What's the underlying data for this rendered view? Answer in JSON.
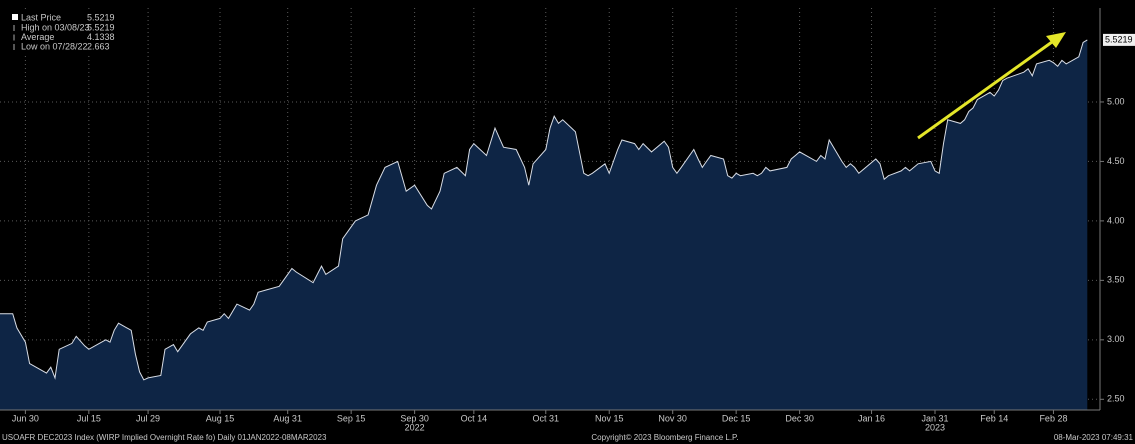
{
  "chart_data": {
    "type": "area",
    "x": [
      "2022-06-24",
      "2022-06-27",
      "2022-06-28",
      "2022-06-30",
      "2022-07-01",
      "2022-07-05",
      "2022-07-06",
      "2022-07-07",
      "2022-07-08",
      "2022-07-11",
      "2022-07-12",
      "2022-07-14",
      "2022-07-15",
      "2022-07-18",
      "2022-07-19",
      "2022-07-20",
      "2022-07-21",
      "2022-07-22",
      "2022-07-25",
      "2022-07-26",
      "2022-07-27",
      "2022-07-28",
      "2022-07-29",
      "2022-08-01",
      "2022-08-02",
      "2022-08-04",
      "2022-08-05",
      "2022-08-08",
      "2022-08-10",
      "2022-08-11",
      "2022-08-12",
      "2022-08-15",
      "2022-08-16",
      "2022-08-17",
      "2022-08-19",
      "2022-08-22",
      "2022-08-23",
      "2022-08-24",
      "2022-08-26",
      "2022-08-29",
      "2022-08-31",
      "2022-09-01",
      "2022-09-02",
      "2022-09-06",
      "2022-09-07",
      "2022-09-08",
      "2022-09-09",
      "2022-09-12",
      "2022-09-13",
      "2022-09-14",
      "2022-09-16",
      "2022-09-19",
      "2022-09-21",
      "2022-09-23",
      "2022-09-26",
      "2022-09-28",
      "2022-09-30",
      "2022-10-03",
      "2022-10-04",
      "2022-10-06",
      "2022-10-07",
      "2022-10-10",
      "2022-10-12",
      "2022-10-13",
      "2022-10-14",
      "2022-10-17",
      "2022-10-19",
      "2022-10-20",
      "2022-10-21",
      "2022-10-24",
      "2022-10-26",
      "2022-10-27",
      "2022-10-28",
      "2022-10-31",
      "2022-11-01",
      "2022-11-02",
      "2022-11-03",
      "2022-11-04",
      "2022-11-07",
      "2022-11-09",
      "2022-11-10",
      "2022-11-11",
      "2022-11-14",
      "2022-11-15",
      "2022-11-17",
      "2022-11-18",
      "2022-11-21",
      "2022-11-22",
      "2022-11-23",
      "2022-11-25",
      "2022-11-28",
      "2022-11-29",
      "2022-11-30",
      "2022-12-01",
      "2022-12-02",
      "2022-12-05",
      "2022-12-06",
      "2022-12-07",
      "2022-12-08",
      "2022-12-09",
      "2022-12-12",
      "2022-12-13",
      "2022-12-14",
      "2022-12-15",
      "2022-12-16",
      "2022-12-19",
      "2022-12-20",
      "2022-12-21",
      "2022-12-22",
      "2022-12-23",
      "2022-12-27",
      "2022-12-28",
      "2022-12-29",
      "2022-12-30",
      "2023-01-03",
      "2023-01-04",
      "2023-01-05",
      "2023-01-06",
      "2023-01-09",
      "2023-01-10",
      "2023-01-11",
      "2023-01-12",
      "2023-01-13",
      "2023-01-17",
      "2023-01-18",
      "2023-01-19",
      "2023-01-20",
      "2023-01-23",
      "2023-01-24",
      "2023-01-25",
      "2023-01-26",
      "2023-01-27",
      "2023-01-30",
      "2023-01-31",
      "2023-02-01",
      "2023-02-02",
      "2023-02-03",
      "2023-02-06",
      "2023-02-07",
      "2023-02-08",
      "2023-02-09",
      "2023-02-10",
      "2023-02-13",
      "2023-02-14",
      "2023-02-15",
      "2023-02-16",
      "2023-02-17",
      "2023-02-21",
      "2023-02-22",
      "2023-02-23",
      "2023-02-24",
      "2023-02-27",
      "2023-02-28",
      "2023-03-01",
      "2023-03-02",
      "2023-03-03",
      "2023-03-06",
      "2023-03-07",
      "2023-03-08"
    ],
    "series": [
      {
        "name": "Last Price",
        "color": "#d8dde6",
        "fill": "#0e2545",
        "values": [
          3.22,
          3.22,
          3.1,
          2.98,
          2.8,
          2.72,
          2.77,
          2.68,
          2.92,
          2.97,
          3.03,
          2.95,
          2.92,
          2.98,
          3.0,
          2.98,
          3.08,
          3.14,
          3.08,
          2.88,
          2.73,
          2.663,
          2.68,
          2.7,
          2.92,
          2.96,
          2.9,
          3.05,
          3.1,
          3.08,
          3.15,
          3.18,
          3.22,
          3.18,
          3.3,
          3.25,
          3.3,
          3.4,
          3.42,
          3.45,
          3.55,
          3.6,
          3.57,
          3.48,
          3.55,
          3.62,
          3.55,
          3.62,
          3.85,
          3.9,
          4.0,
          4.05,
          4.3,
          4.45,
          4.5,
          4.25,
          4.3,
          4.13,
          4.1,
          4.25,
          4.4,
          4.45,
          4.38,
          4.6,
          4.65,
          4.55,
          4.78,
          4.7,
          4.62,
          4.6,
          4.45,
          4.3,
          4.48,
          4.6,
          4.78,
          4.88,
          4.82,
          4.85,
          4.75,
          4.4,
          4.38,
          4.4,
          4.48,
          4.4,
          4.6,
          4.68,
          4.65,
          4.6,
          4.65,
          4.58,
          4.67,
          4.62,
          4.45,
          4.4,
          4.45,
          4.6,
          4.52,
          4.45,
          4.5,
          4.55,
          4.52,
          4.38,
          4.36,
          4.4,
          4.38,
          4.4,
          4.38,
          4.4,
          4.45,
          4.42,
          4.45,
          4.52,
          4.55,
          4.58,
          4.5,
          4.55,
          4.52,
          4.68,
          4.5,
          4.45,
          4.48,
          4.45,
          4.4,
          4.52,
          4.48,
          4.35,
          4.38,
          4.42,
          4.45,
          4.42,
          4.45,
          4.48,
          4.5,
          4.42,
          4.4,
          4.65,
          4.85,
          4.82,
          4.85,
          4.92,
          4.95,
          5.02,
          5.08,
          5.05,
          5.1,
          5.18,
          5.2,
          5.25,
          5.28,
          5.22,
          5.32,
          5.35,
          5.33,
          5.3,
          5.35,
          5.32,
          5.38,
          5.5,
          5.5219
        ]
      }
    ],
    "stats": [
      {
        "label": "High on 03/08/23",
        "value": 5.5219
      },
      {
        "label": "Average",
        "value": 4.1338
      },
      {
        "label": "Low on 07/28/22",
        "value": 2.663
      }
    ],
    "xlim": [
      "2022-06-24",
      "2023-03-11"
    ],
    "xticks": [
      {
        "value": "2022-06-30",
        "label": "Jun 30"
      },
      {
        "value": "2022-07-15",
        "label": "Jul 15"
      },
      {
        "value": "2022-07-29",
        "label": "Jul 29"
      },
      {
        "value": "2022-08-15",
        "label": "Aug 15"
      },
      {
        "value": "2022-08-31",
        "label": "Aug 31"
      },
      {
        "value": "2022-09-15",
        "label": "Sep 15"
      },
      {
        "value": "2022-09-30",
        "label": "Sep 30"
      },
      {
        "value": "2022-10-14",
        "label": "Oct 14"
      },
      {
        "value": "2022-10-31",
        "label": "Oct 31"
      },
      {
        "value": "2022-11-15",
        "label": "Nov 15"
      },
      {
        "value": "2022-11-30",
        "label": "Nov 30"
      },
      {
        "value": "2022-12-15",
        "label": "Dec 15"
      },
      {
        "value": "2022-12-30",
        "label": "Dec 30"
      },
      {
        "value": "2023-01-16",
        "label": "Jan 16"
      },
      {
        "value": "2023-01-31",
        "label": "Jan 31"
      },
      {
        "value": "2023-02-14",
        "label": "Feb 14"
      },
      {
        "value": "2023-02-28",
        "label": "Feb 28"
      }
    ],
    "year_labels": [
      {
        "value": "2022-09-30",
        "label": "2022"
      },
      {
        "value": "2023-01-31",
        "label": "2023"
      }
    ],
    "ylim": [
      2.41,
      5.79
    ],
    "yticks": [
      {
        "value": 2.5,
        "label": "2.50"
      },
      {
        "value": 3,
        "label": "3.00"
      },
      {
        "value": 3.5,
        "label": "3.50"
      },
      {
        "value": 4,
        "label": "4.00"
      },
      {
        "value": 4.5,
        "label": "4.50"
      },
      {
        "value": 5,
        "label": "5.00"
      }
    ],
    "grid": true,
    "footer": {
      "left": "USOAFR DEC2023 Index (WIRP Implied Overnight Rate fo)  Daily 01JAN2022-08MAR2023",
      "center": "Copyright© 2023 Bloomberg Finance L.P.",
      "right": "08-Mar-2023 07:49:31"
    }
  }
}
